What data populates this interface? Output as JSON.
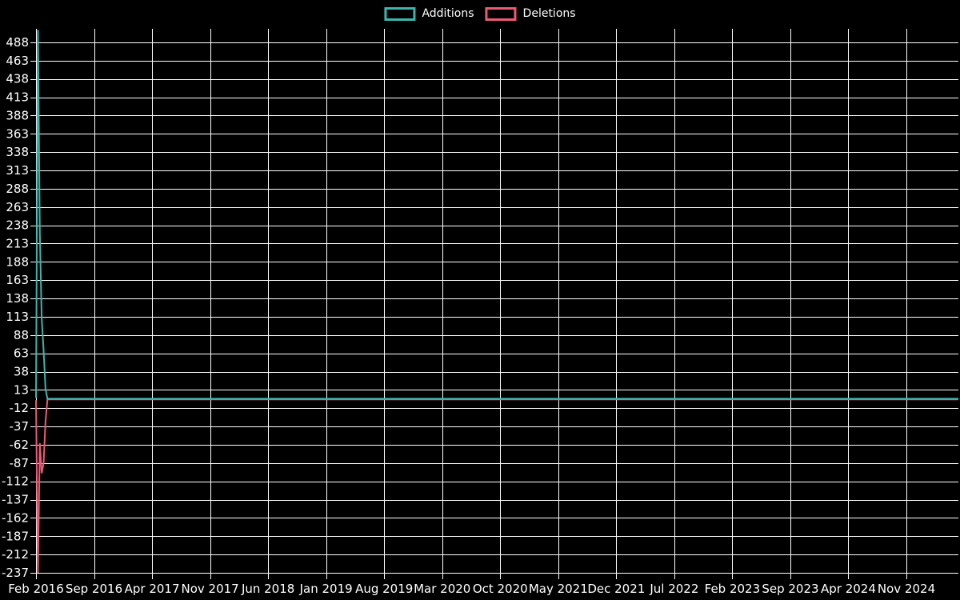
{
  "background_color": "#000000",
  "grid_color": "#ffffff",
  "text_color": "#ffffff",
  "legend": {
    "items": [
      {
        "label": "Additions",
        "color": "#3db4ac"
      },
      {
        "label": "Deletions",
        "color": "#ec5a75"
      }
    ]
  },
  "chart_data": {
    "type": "line",
    "title": "",
    "xlabel": "",
    "ylabel": "",
    "grid": true,
    "legend_position": "top-center",
    "x_tick_interval_months": 7,
    "x_ticks": [
      "Feb 2016",
      "Sep 2016",
      "Apr 2017",
      "Nov 2017",
      "Jun 2018",
      "Jan 2019",
      "Aug 2019",
      "Mar 2020",
      "Oct 2020",
      "May 2021",
      "Dec 2021",
      "Jul 2022",
      "Feb 2023",
      "Sep 2023",
      "Apr 2024",
      "Nov 2024"
    ],
    "y_ticks": [
      488,
      463,
      438,
      413,
      388,
      363,
      338,
      313,
      288,
      263,
      238,
      213,
      188,
      163,
      138,
      113,
      88,
      63,
      38,
      13,
      -12,
      -37,
      -62,
      -87,
      -112,
      -137,
      -162,
      -187,
      -212,
      -237
    ],
    "ylim": [
      -240,
      507
    ],
    "series": [
      {
        "name": "Additions",
        "color": "#3db4ac",
        "weekly_values": [
          2,
          505,
          227,
          111,
          67,
          14
        ],
        "flat_value_after": 1
      },
      {
        "name": "Deletions",
        "color": "#ec5a75",
        "weekly_values": [
          -1,
          -237,
          -60,
          -101,
          -87,
          -30
        ],
        "flat_value_after": 0
      }
    ]
  }
}
